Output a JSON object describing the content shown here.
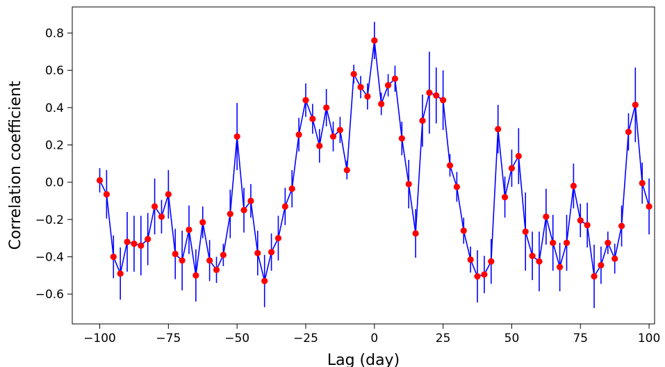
{
  "chart_data": {
    "type": "line",
    "title": "",
    "xlabel": "Lag (day)",
    "ylabel": "Correlation coefficient",
    "xlim": [
      -110,
      102
    ],
    "ylim": [
      -0.76,
      0.94
    ],
    "xticks": [
      -100,
      -75,
      -50,
      -25,
      0,
      25,
      50,
      75,
      100
    ],
    "xtick_labels": [
      "−100",
      "−75",
      "−50",
      "−25",
      "0",
      "25",
      "50",
      "75",
      "100"
    ],
    "yticks": [
      -0.6,
      -0.4,
      -0.2,
      0.0,
      0.2,
      0.4,
      0.6,
      0.8
    ],
    "ytick_labels": [
      "−0.6",
      "−0.4",
      "−0.2",
      "0.0",
      "0.2",
      "0.4",
      "0.6",
      "0.8"
    ],
    "grid": false,
    "line_color": "#0000ff",
    "marker_color": "#ff0000",
    "errorbar_color": "#0000ff",
    "series": [
      {
        "x": [
          -100,
          -97.5,
          -95,
          -92.5,
          -90,
          -87.5,
          -85,
          -82.5,
          -80,
          -77.5,
          -75,
          -72.5,
          -70,
          -67.5,
          -65,
          -62.5,
          -60,
          -57.5,
          -55,
          -52.5,
          -50,
          -47.5,
          -45,
          -42.5,
          -40,
          -37.5,
          -35,
          -32.5,
          -30,
          -27.5,
          -25,
          -22.5,
          -20,
          -17.5,
          -15,
          -12.5,
          -10,
          -7.5,
          -5,
          -2.5,
          0,
          2.5,
          5,
          7.5,
          10,
          12.5,
          15,
          17.5,
          20,
          22.5,
          25,
          27.5,
          30,
          32.5,
          35,
          37.5,
          40,
          42.5,
          45,
          47.5,
          50,
          52.5,
          55,
          57.5,
          60,
          62.5,
          65,
          67.5,
          70,
          72.5,
          75,
          77.5,
          80,
          82.5,
          85,
          87.5,
          90,
          92.5,
          95,
          97.5,
          100
        ],
        "y": [
          0.01,
          -0.065,
          -0.4,
          -0.49,
          -0.32,
          -0.33,
          -0.34,
          -0.305,
          -0.13,
          -0.185,
          -0.065,
          -0.385,
          -0.42,
          -0.255,
          -0.5,
          -0.215,
          -0.42,
          -0.47,
          -0.39,
          -0.17,
          0.245,
          -0.15,
          -0.1,
          -0.38,
          -0.53,
          -0.375,
          -0.3,
          -0.13,
          -0.035,
          0.255,
          0.44,
          0.34,
          0.195,
          0.4,
          0.245,
          0.28,
          0.065,
          0.58,
          0.51,
          0.46,
          0.76,
          0.42,
          0.52,
          0.555,
          0.235,
          -0.01,
          -0.275,
          0.33,
          0.48,
          0.465,
          0.44,
          0.09,
          -0.025,
          -0.26,
          -0.415,
          -0.505,
          -0.495,
          -0.425,
          0.285,
          -0.08,
          0.075,
          0.14,
          -0.265,
          -0.395,
          -0.425,
          -0.185,
          -0.325,
          -0.455,
          -0.325,
          -0.02,
          -0.205,
          -0.23,
          -0.505,
          -0.445,
          -0.325,
          -0.41,
          -0.235,
          0.27,
          0.415,
          -0.005,
          -0.13
        ],
        "err": [
          0.065,
          0.13,
          0.115,
          0.14,
          0.16,
          0.15,
          0.16,
          0.14,
          0.15,
          0.09,
          0.13,
          0.135,
          0.16,
          0.13,
          0.14,
          0.085,
          0.11,
          0.07,
          0.06,
          0.13,
          0.18,
          0.12,
          0.09,
          0.12,
          0.14,
          0.1,
          0.12,
          0.1,
          0.1,
          0.09,
          0.09,
          0.08,
          0.09,
          0.1,
          0.08,
          0.07,
          0.05,
          0.05,
          0.06,
          0.07,
          0.1,
          0.06,
          0.06,
          0.07,
          0.09,
          0.13,
          0.13,
          0.14,
          0.22,
          0.15,
          0.16,
          0.06,
          0.08,
          0.07,
          0.07,
          0.14,
          0.1,
          0.12,
          0.13,
          0.11,
          0.1,
          0.15,
          0.21,
          0.13,
          0.16,
          0.15,
          0.15,
          0.13,
          0.15,
          0.12,
          0.09,
          0.12,
          0.17,
          0.1,
          0.06,
          0.08,
          0.11,
          0.1,
          0.2,
          0.11,
          0.15
        ]
      }
    ]
  }
}
